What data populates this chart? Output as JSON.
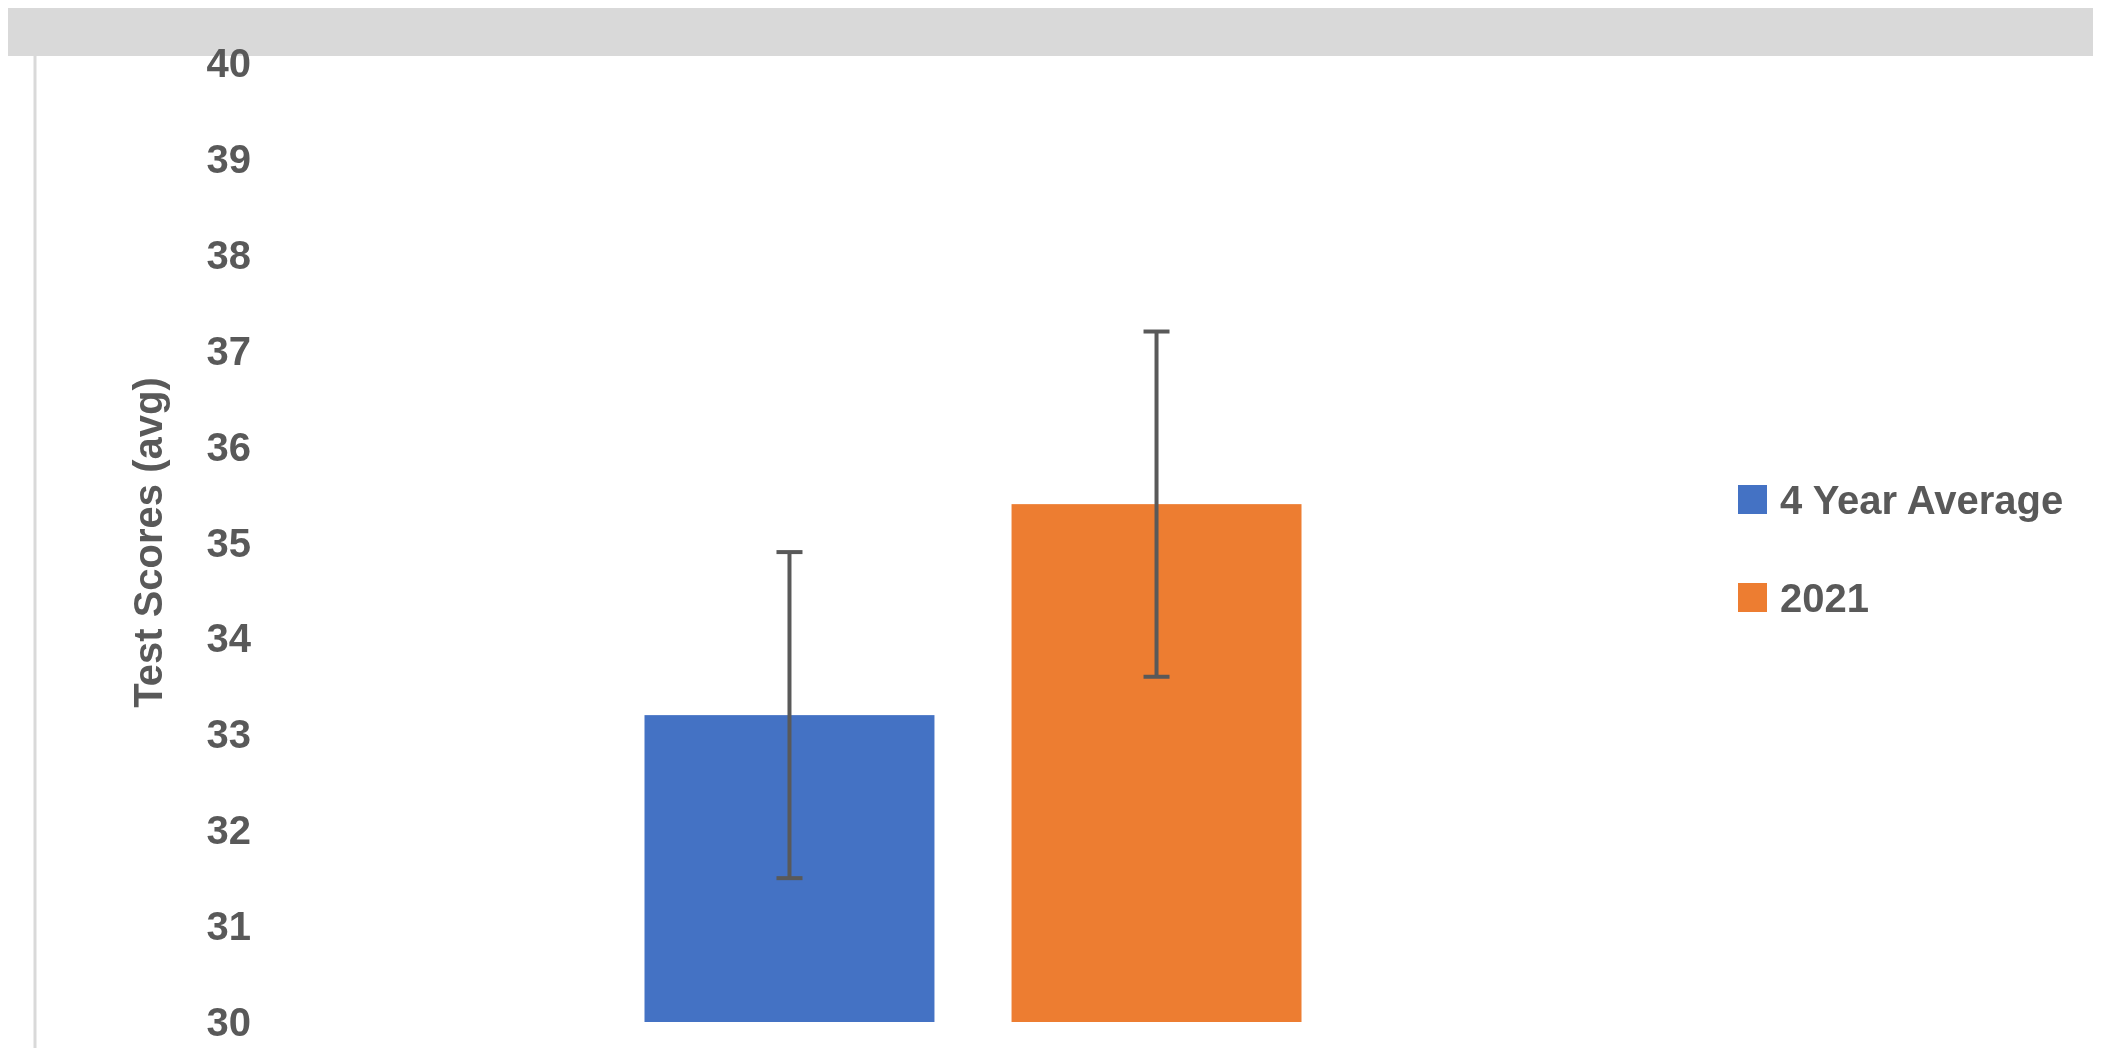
{
  "chart_data": {
    "type": "bar",
    "ylabel": "Test Scores (avg)",
    "categories": [
      null
    ],
    "series": [
      {
        "name": "4 Year Average",
        "color": "#4472c4",
        "values": [
          33.2
        ],
        "errors": [
          1.7
        ]
      },
      {
        "name": "2021",
        "color": "#ed7d31",
        "values": [
          35.4
        ],
        "errors": [
          1.8
        ]
      }
    ],
    "ylim": [
      30,
      40
    ],
    "yticks": [
      30,
      31,
      32,
      33,
      34,
      35,
      36,
      37,
      38,
      39,
      40
    ],
    "legend": "right",
    "grid": false
  }
}
